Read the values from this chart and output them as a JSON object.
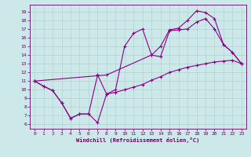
{
  "xlabel": "Windchill (Refroidissement éolien,°C)",
  "bg_color": "#cce8e8",
  "line_color": "#880088",
  "xlim_min": -0.5,
  "xlim_max": 23.5,
  "ylim_min": 5.5,
  "ylim_max": 19.8,
  "xticks": [
    0,
    1,
    2,
    3,
    4,
    5,
    6,
    7,
    8,
    9,
    10,
    11,
    12,
    13,
    14,
    15,
    16,
    17,
    18,
    19,
    20,
    21,
    22,
    23
  ],
  "yticks": [
    6,
    7,
    8,
    9,
    10,
    11,
    12,
    13,
    14,
    15,
    16,
    17,
    18,
    19
  ],
  "line1_x": [
    0,
    1,
    2,
    3,
    4,
    5,
    6,
    7,
    8,
    9,
    10,
    11,
    12,
    13,
    14,
    15,
    16,
    17,
    18,
    19,
    20,
    21,
    22,
    23
  ],
  "line1_y": [
    11.0,
    10.4,
    9.9,
    8.5,
    6.7,
    7.2,
    7.2,
    6.2,
    9.5,
    9.7,
    10.0,
    10.3,
    10.6,
    11.1,
    11.5,
    12.0,
    12.3,
    12.6,
    12.8,
    13.0,
    13.2,
    13.3,
    13.4,
    13.0
  ],
  "line2_x": [
    0,
    8,
    13,
    14,
    15,
    16,
    17,
    18,
    19,
    20,
    21,
    22,
    23
  ],
  "line2_y": [
    11.0,
    11.7,
    14.0,
    13.8,
    16.8,
    16.9,
    17.0,
    17.8,
    18.2,
    17.0,
    15.2,
    14.3,
    13.0
  ],
  "line3_x": [
    0,
    1,
    2,
    3,
    4,
    5,
    6,
    7,
    8,
    9,
    10,
    11,
    12,
    13,
    14,
    15,
    16,
    17,
    18,
    19,
    20,
    21,
    22,
    23
  ],
  "line3_y": [
    11.0,
    10.4,
    9.9,
    8.5,
    6.7,
    7.2,
    7.2,
    11.7,
    9.5,
    10.0,
    15.0,
    16.5,
    17.0,
    14.0,
    15.0,
    16.9,
    17.1,
    18.0,
    19.1,
    18.9,
    18.2,
    15.2,
    14.3,
    13.0
  ],
  "tick_fontsize": 4.5,
  "xlabel_fontsize": 5.0,
  "lw": 0.8,
  "ms": 2.5
}
